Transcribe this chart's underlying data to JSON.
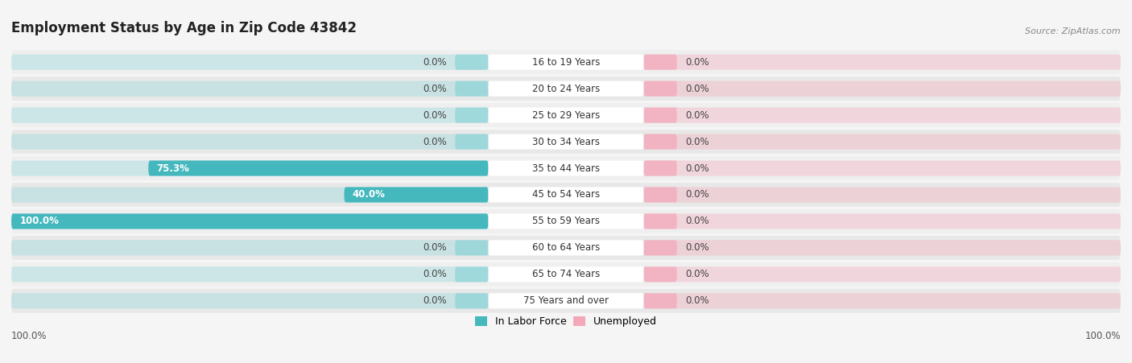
{
  "title": "Employment Status by Age in Zip Code 43842",
  "source": "Source: ZipAtlas.com",
  "categories": [
    "16 to 19 Years",
    "20 to 24 Years",
    "25 to 29 Years",
    "30 to 34 Years",
    "35 to 44 Years",
    "45 to 54 Years",
    "55 to 59 Years",
    "60 to 64 Years",
    "65 to 74 Years",
    "75 Years and over"
  ],
  "labor_force": [
    0.0,
    0.0,
    0.0,
    0.0,
    75.3,
    40.0,
    100.0,
    0.0,
    0.0,
    0.0
  ],
  "unemployed": [
    0.0,
    0.0,
    0.0,
    0.0,
    0.0,
    0.0,
    0.0,
    0.0,
    0.0,
    0.0
  ],
  "labor_force_color": "#45b8be",
  "labor_force_color_light": "#8dd4d8",
  "unemployed_color": "#f4a7b9",
  "bar_bg_color_left": "#d8d8d8",
  "bar_bg_color_right": "#e8e8e8",
  "row_bg_color": "#efefef",
  "row_bg_color_alt": "#e8e8e8",
  "background_color": "#f5f5f5",
  "label_bg_color": "#ffffff",
  "title_fontsize": 12,
  "label_fontsize": 9,
  "axis_label_left": "100.0%",
  "axis_label_right": "100.0%",
  "legend_labor": "In Labor Force",
  "legend_unemployed": "Unemployed",
  "small_bar_width": 6.0
}
